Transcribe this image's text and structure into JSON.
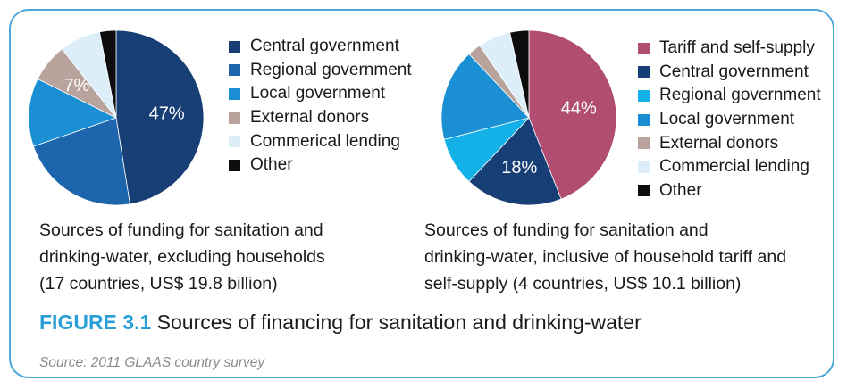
{
  "chart_data": [
    {
      "type": "pie",
      "slices": [
        {
          "label": "Central government",
          "value": 47,
          "color": "#173f75"
        },
        {
          "label": "Regional government",
          "value": 22,
          "color": "#1d65ad"
        },
        {
          "label": "Local government",
          "value": 12.5,
          "color": "#1a8fd3"
        },
        {
          "label": "External donors",
          "value": 7,
          "color": "#b8a39d"
        },
        {
          "label": "Commerical lending",
          "value": 7.5,
          "color": "#dbeefa"
        },
        {
          "label": "Other",
          "value": 3,
          "color": "#0d0d0d"
        }
      ],
      "data_labels": [
        {
          "text": "47%",
          "slice": 0,
          "color": "#ffffff"
        },
        {
          "text": "7%",
          "slice": 3,
          "color": "#ffffff"
        }
      ],
      "legend_position": "right",
      "caption": [
        "Sources of funding for sanitation and",
        "drinking-water, excluding households",
        "(17 countries, US$ 19.8 billion)"
      ]
    },
    {
      "type": "pie",
      "slices": [
        {
          "label": "Tariff and self-supply",
          "value": 44,
          "color": "#b04d71"
        },
        {
          "label": "Central government",
          "value": 18,
          "color": "#173f75"
        },
        {
          "label": "Regional government",
          "value": 9,
          "color": "#14b0e8"
        },
        {
          "label": "Local government",
          "value": 17,
          "color": "#1a8fd3"
        },
        {
          "label": "External donors",
          "value": 2.5,
          "color": "#b8a39d"
        },
        {
          "label": "Commercial lending",
          "value": 6,
          "color": "#dbeefa"
        },
        {
          "label": "Other",
          "value": 3.5,
          "color": "#0d0d0d"
        }
      ],
      "data_labels": [
        {
          "text": "44%",
          "slice": 0,
          "color": "#ffffff"
        },
        {
          "text": "18%",
          "slice": 1,
          "color": "#ffffff"
        }
      ],
      "legend_position": "right",
      "caption": [
        "Sources of funding for sanitation and",
        "drinking-water, inclusive of household tariff and",
        "self-supply (4 countries, US$ 10.1 billion)"
      ]
    }
  ],
  "figure": {
    "label": "FIGURE 3.1",
    "title": "Sources of financing for sanitation and drinking-water",
    "source": "Source: 2011 GLAAS country survey"
  },
  "colors": {
    "frame": "#4aa8d8",
    "figure_label": "#2a9fd6",
    "source_text": "#8c8c8c"
  }
}
